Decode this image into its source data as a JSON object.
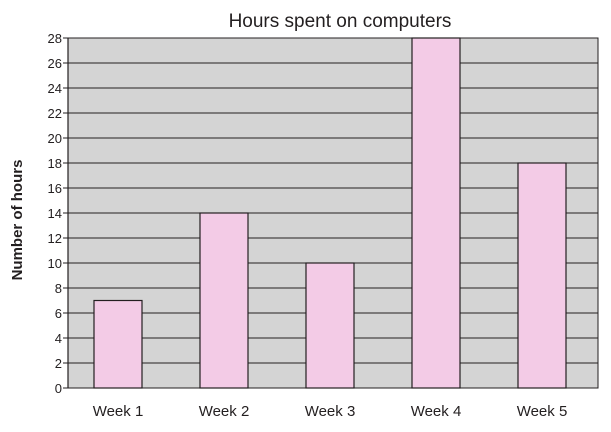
{
  "chart_data": {
    "type": "bar",
    "title": "Hours spent on computers",
    "xlabel": "",
    "ylabel": "Number of hours",
    "categories": [
      "Week 1",
      "Week 2",
      "Week 3",
      "Week 4",
      "Week 5"
    ],
    "values": [
      7,
      14,
      10,
      28,
      18
    ],
    "ylim": [
      0,
      28
    ],
    "yticks": [
      0,
      2,
      4,
      6,
      8,
      10,
      12,
      14,
      16,
      18,
      20,
      22,
      24,
      26,
      28
    ],
    "grid": true,
    "legend": "none",
    "colors": {
      "bar_fill": "#f3cbe6",
      "bar_stroke": "#231f20",
      "plot_background": "#d4d4d4",
      "grid": "#231f20"
    }
  }
}
